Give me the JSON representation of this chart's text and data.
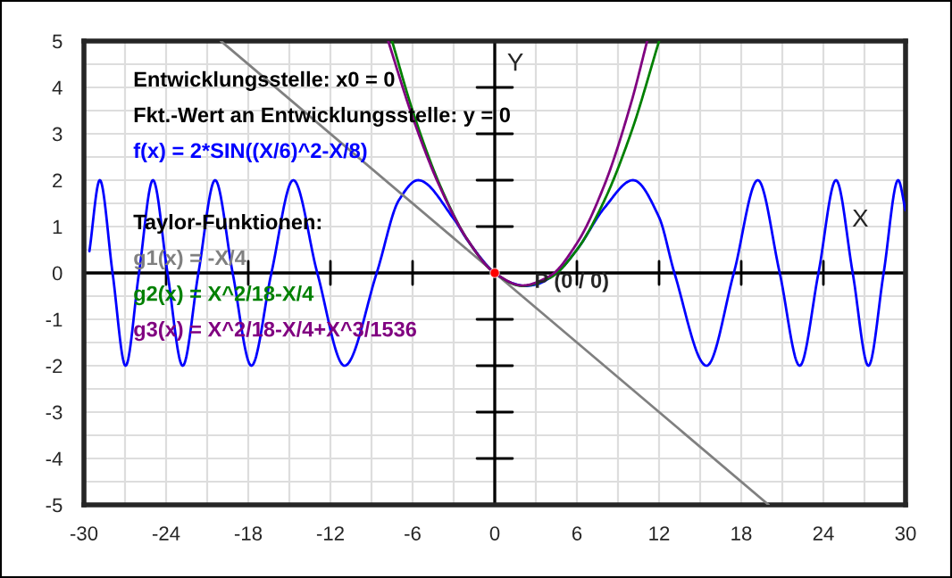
{
  "chart_data": {
    "type": "line",
    "xlabel": "X",
    "ylabel": "Y",
    "annotations": [
      "Entwicklungsstelle: x0 = 0",
      "Fkt.-Wert an Entwicklungsstelle: y = 0",
      "Taylor-Funktionen:",
      {
        "text": "P (0 / 0)",
        "x": 0,
        "y": 0
      }
    ],
    "series": [
      {
        "name": "f(x) = 2*SIN((X/6)^2-X/8)",
        "color": "#0000ff",
        "x": [
          -29.6,
          -28.84,
          -27.91,
          -26.96,
          -25.98,
          -24.96,
          -23.9,
          -22.79,
          -21.64,
          -20.42,
          -19.14,
          -17.77,
          -16.31,
          -14.71,
          -12.96,
          -10.97,
          -8.62,
          -7,
          -5.6,
          -3,
          -2,
          0,
          1,
          2.25,
          3,
          4.5,
          6,
          8,
          10.1,
          12,
          13.12,
          15.47,
          17.46,
          19.21,
          20.81,
          22.27,
          23.64,
          24.92,
          26.14,
          27.29,
          28.4,
          29.46,
          30
        ],
        "values": [
          0.47,
          2,
          0,
          -2,
          0,
          2,
          0,
          -2,
          0,
          2,
          0,
          -2,
          0,
          2,
          0,
          -2,
          0,
          1.57,
          2,
          1.17,
          0.71,
          0,
          -0.19,
          -0.28,
          -0.25,
          0,
          0.5,
          1.4,
          2,
          1.2,
          0,
          -2,
          0,
          2,
          0,
          -2,
          0,
          2,
          0,
          -2,
          0,
          2,
          1.35
        ]
      },
      {
        "name": "g1(x) = -X/4",
        "color": "#808080",
        "x": [
          -20,
          20
        ],
        "values": [
          5,
          -5
        ]
      },
      {
        "name": "g2(x) = X^2/18-X/4",
        "color": "#008000",
        "x": [
          -7.5,
          -6,
          -4,
          -2,
          0,
          2,
          4,
          6,
          8,
          10,
          12
        ],
        "values": [
          5,
          3.5,
          1.89,
          0.72,
          0,
          -0.28,
          -0.11,
          0.5,
          1.56,
          3.06,
          5
        ]
      },
      {
        "name": "g3(x) = X^2/18-X/4+X^3/1536",
        "color": "#800080",
        "x": [
          -7.78,
          -6,
          -4,
          -2,
          0,
          2,
          4,
          6,
          8,
          10,
          11.13
        ],
        "values": [
          5,
          3.36,
          1.85,
          0.72,
          0,
          -0.27,
          -0.07,
          0.64,
          1.89,
          3.71,
          5
        ]
      },
      {
        "type": "scatter",
        "color": "#ff0000",
        "x": [
          0
        ],
        "values": [
          0
        ],
        "marker": "circle"
      }
    ],
    "xlim": [
      -30,
      30
    ],
    "ylim": [
      -5,
      5
    ],
    "xticks": [
      -30,
      -24,
      -18,
      -12,
      -6,
      0,
      6,
      12,
      18,
      24,
      30
    ],
    "yticks": [
      -5,
      -4,
      -3,
      -2,
      -1,
      0,
      1,
      2,
      3,
      4,
      5
    ],
    "grid": true,
    "legend": "top left",
    "marker": "none",
    "line_style": "solid"
  }
}
